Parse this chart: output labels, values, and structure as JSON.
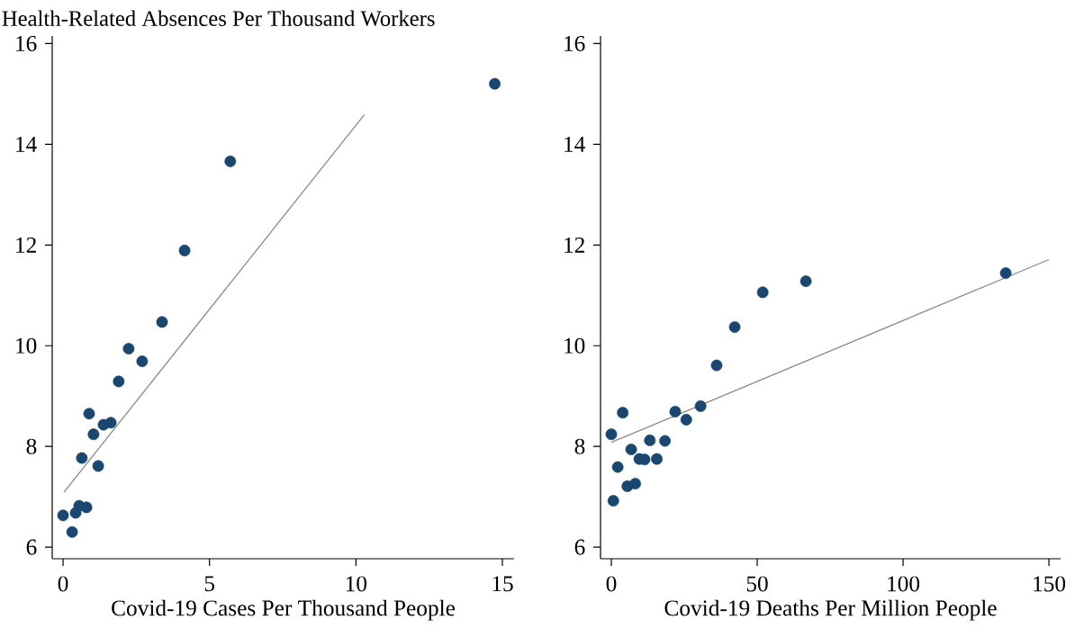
{
  "chart_data": [
    {
      "type": "scatter",
      "title": "Health-Related Absences Per Thousand Workers",
      "xlabel": "Covid-19 Cases Per Thousand People",
      "xlim": [
        -0.37,
        15.4
      ],
      "ylim": [
        5.77,
        16.15
      ],
      "xticks": [
        0,
        5,
        10,
        15
      ],
      "yticks": [
        6,
        8,
        10,
        12,
        14,
        16
      ],
      "series": [
        {
          "color": "#1a476f",
          "marker": "circle",
          "x": [
            0.0,
            0.31,
            0.43,
            0.55,
            0.8,
            0.64,
            0.89,
            1.04,
            1.2,
            1.38,
            1.63,
            1.9,
            2.24,
            2.7,
            3.38,
            4.15,
            5.71,
            14.74
          ],
          "values": [
            6.63,
            6.3,
            6.68,
            6.82,
            6.79,
            7.77,
            8.65,
            8.24,
            7.61,
            8.43,
            8.47,
            9.29,
            9.94,
            9.69,
            10.47,
            11.89,
            13.66,
            15.2
          ]
        },
        {
          "type": "line",
          "color": "#8c8c8c",
          "marker": "none",
          "x": [
            0.03,
            10.29
          ],
          "values": [
            7.09,
            14.59
          ]
        }
      ]
    },
    {
      "type": "scatter",
      "xlabel": "Covid-19 Deaths Per Million People",
      "xlim": [
        -3.7,
        154
      ],
      "ylim": [
        5.77,
        16.15
      ],
      "xticks": [
        0,
        50,
        100,
        150
      ],
      "yticks": [
        6,
        8,
        10,
        12,
        14,
        16
      ],
      "series": [
        {
          "color": "#1a476f",
          "marker": "circle",
          "x": [
            0,
            3.9,
            0.7,
            2.2,
            5.5,
            8.2,
            6.8,
            9.6,
            11.4,
            13.2,
            15.6,
            18.4,
            21.9,
            25.7,
            30.6,
            36.1,
            42.3,
            51.9,
            66.7,
            135.2
          ],
          "values": [
            8.24,
            8.67,
            6.92,
            7.59,
            7.21,
            7.26,
            7.94,
            7.75,
            7.74,
            8.12,
            7.75,
            8.11,
            8.69,
            8.53,
            8.8,
            9.61,
            10.37,
            11.06,
            11.28,
            11.44
          ]
        },
        {
          "type": "line",
          "color": "#8c8c8c",
          "marker": "none",
          "x": [
            0,
            150
          ],
          "values": [
            8.08,
            11.71
          ]
        }
      ]
    }
  ]
}
